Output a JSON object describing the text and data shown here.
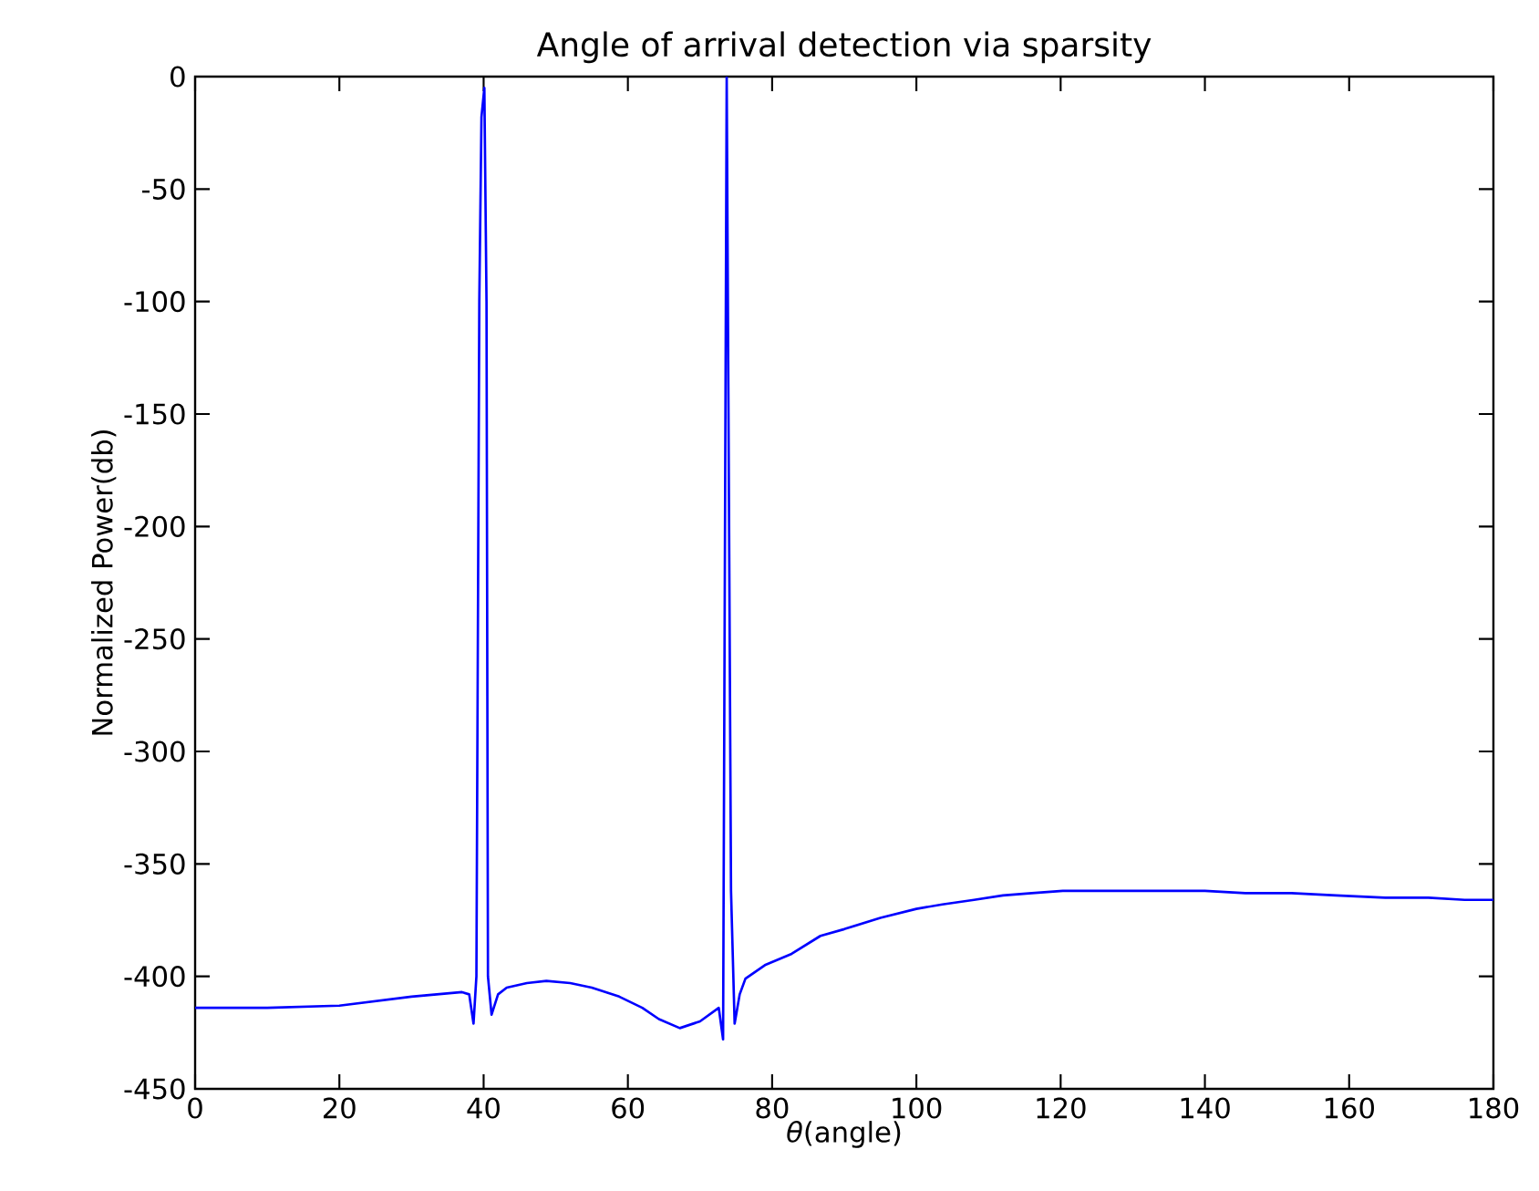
{
  "chart_data": {
    "type": "line",
    "title": "Angle of arrival detection via sparsity",
    "xlabel": "*θ*(angle)",
    "ylabel": "Normalized Power(db)",
    "color": "#0000ff",
    "x": [
      0,
      10,
      20,
      30,
      37,
      38,
      38.6,
      39.0,
      39.4,
      39.7,
      40.1,
      40.4,
      40.6,
      41.1,
      42,
      43.2,
      46,
      48.7,
      52,
      55,
      58.8,
      62,
      64.3,
      67.2,
      70,
      72.6,
      73.2,
      73.7,
      74.3,
      74.8,
      75.5,
      76.3,
      79,
      82.7,
      86.7,
      90,
      95,
      100,
      103.6,
      108,
      112,
      116,
      120.3,
      126,
      133,
      140,
      145.6,
      152,
      158.2,
      165,
      171,
      176,
      180
    ],
    "values": [
      -414,
      -414,
      -413,
      -409,
      -407,
      -408,
      -421,
      -400,
      -100,
      -18,
      -5,
      -100,
      -400,
      -417,
      -408,
      -405,
      -403,
      -402,
      -403,
      -405,
      -409,
      -414,
      -419,
      -423,
      -420,
      -414,
      -428,
      0,
      -362,
      -421,
      -408,
      -401,
      -395,
      -390,
      -382,
      -379,
      -374,
      -370,
      -368,
      -366,
      -364,
      -363,
      -362,
      -362,
      -362,
      -362,
      -363,
      -363,
      -364,
      -365,
      -365,
      -366,
      -366
    ],
    "xlim": [
      0,
      180
    ],
    "ylim": [
      -450,
      0
    ],
    "xticks": [
      0,
      20,
      40,
      60,
      80,
      100,
      120,
      140,
      160,
      180
    ],
    "yticks": [
      -450,
      -400,
      -350,
      -300,
      -250,
      -200,
      -150,
      -100,
      -50,
      0
    ],
    "grid": false
  }
}
